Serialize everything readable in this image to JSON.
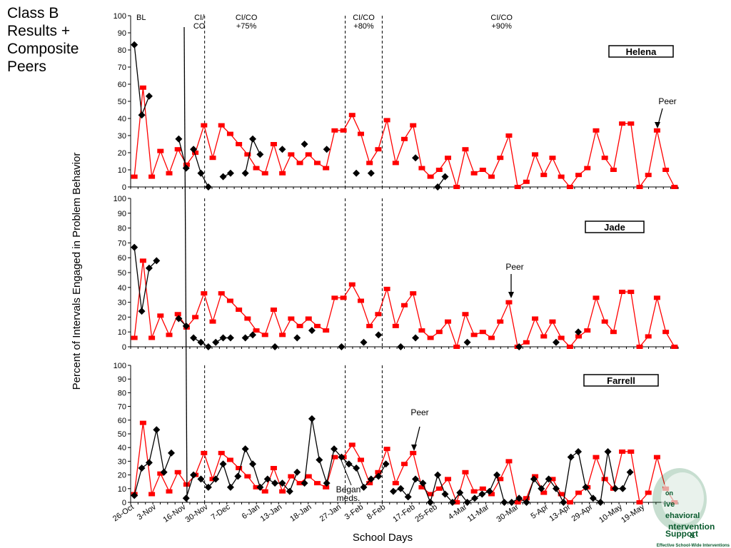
{
  "slide": {
    "title": "Class B\nResults +\nComposite\nPeers"
  },
  "colors": {
    "student": "#000000",
    "peer": "#ff0000",
    "logo_green": "#0a5b2e"
  },
  "chart_data": {
    "type": "line",
    "y_title": "Percent of Intervals Engaged in Problem Behavior",
    "x_title": "School Days",
    "ylim": [
      0,
      100
    ],
    "y_ticks": [
      0,
      10,
      20,
      30,
      40,
      50,
      60,
      70,
      80,
      90,
      100
    ],
    "n_days": 74,
    "x_tick_labels": [
      {
        "day": 1,
        "label": "26-Oct"
      },
      {
        "day": 4,
        "label": "3-Nov"
      },
      {
        "day": 8,
        "label": "16-Nov"
      },
      {
        "day": 11,
        "label": "30-Nov"
      },
      {
        "day": 14,
        "label": "7-Dec"
      },
      {
        "day": 18,
        "label": "6-Jan"
      },
      {
        "day": 21,
        "label": "13-Jan"
      },
      {
        "day": 25,
        "label": "18-Jan"
      },
      {
        "day": 29,
        "label": "27-Jan"
      },
      {
        "day": 32,
        "label": "3-Feb"
      },
      {
        "day": 35,
        "label": "8-Feb"
      },
      {
        "day": 39,
        "label": "17-Feb"
      },
      {
        "day": 42,
        "label": "25-Feb"
      },
      {
        "day": 46,
        "label": "4-Mar"
      },
      {
        "day": 49,
        "label": "11-Mar"
      },
      {
        "day": 53,
        "label": "30-Mar"
      },
      {
        "day": 57,
        "label": "5-Apr"
      },
      {
        "day": 60,
        "label": "13-Apr"
      },
      {
        "day": 63,
        "label": "29-Apr"
      },
      {
        "day": 67,
        "label": "10-May"
      },
      {
        "day": 70,
        "label": "19-May"
      }
    ],
    "phases": [
      {
        "label": "BL",
        "align": "left"
      },
      {
        "label": "CI/\nCO",
        "align": "center"
      },
      {
        "label": "CI/CO\n+75%",
        "align": "center"
      },
      {
        "label": "CI/CO\n+80%",
        "align": "center"
      },
      {
        "label": "CI/CO\n+90%",
        "align": "center"
      }
    ],
    "phase_change_after_days": [
      10.5,
      29.5,
      34.5
    ],
    "peer_series": {
      "name": "Peer",
      "values": [
        6,
        58,
        6,
        21,
        8,
        22,
        13,
        20,
        36,
        17,
        36,
        31,
        25,
        19,
        11,
        8,
        25,
        8,
        19,
        14,
        19,
        14,
        11,
        33,
        33,
        42,
        31,
        14,
        22,
        39,
        14,
        28,
        36,
        11,
        6,
        10,
        17,
        0,
        22,
        8,
        10,
        6,
        17,
        30,
        0,
        3,
        19,
        7,
        17,
        6,
        0,
        7,
        11,
        33,
        17,
        10,
        37,
        37,
        0,
        7,
        33,
        10,
        0
      ]
    },
    "panels": [
      {
        "student": "Helena",
        "peer_label": "Peer",
        "student_series": [
          {
            "days": [
              1,
              2,
              3,
              4
            ],
            "values": [
              83,
              42,
              53,
              null
            ]
          },
          {
            "days": [
              7,
              8
            ],
            "values": [
              28,
              11
            ]
          },
          {
            "days": [
              9,
              10,
              11
            ],
            "values": [
              22,
              8,
              0
            ]
          },
          {
            "days": [
              13,
              14
            ],
            "values": [
              6,
              8
            ]
          },
          {
            "days": [
              16,
              17,
              18
            ],
            "values": [
              8,
              28,
              19
            ]
          },
          {
            "days": [
              21
            ],
            "values": [
              22
            ]
          },
          {
            "days": [
              24
            ],
            "values": [
              25
            ]
          },
          {
            "days": [
              27
            ],
            "values": [
              22
            ]
          },
          {
            "days": [
              31
            ],
            "values": [
              8
            ]
          },
          {
            "days": [
              33
            ],
            "values": [
              8
            ]
          },
          {
            "days": [
              39
            ],
            "values": [
              17
            ]
          },
          {
            "days": [
              42,
              43
            ],
            "values": [
              0,
              6
            ]
          }
        ]
      },
      {
        "student": "Jade",
        "peer_label": "Peer",
        "student_series": [
          {
            "days": [
              1,
              2,
              3,
              4,
              5
            ],
            "values": [
              67,
              24,
              53,
              58,
              null
            ]
          },
          {
            "days": [
              7,
              8
            ],
            "values": [
              19,
              14
            ]
          },
          {
            "days": [
              9,
              10,
              11
            ],
            "values": [
              6,
              3,
              0
            ]
          },
          {
            "days": [
              12,
              13,
              14
            ],
            "values": [
              3,
              6,
              6
            ]
          },
          {
            "days": [
              16,
              17
            ],
            "values": [
              6,
              8
            ]
          },
          {
            "days": [
              20
            ],
            "values": [
              0
            ]
          },
          {
            "days": [
              23
            ],
            "values": [
              6
            ]
          },
          {
            "days": [
              25
            ],
            "values": [
              11
            ]
          },
          {
            "days": [
              29
            ],
            "values": [
              0
            ]
          },
          {
            "days": [
              32
            ],
            "values": [
              3
            ]
          },
          {
            "days": [
              34
            ],
            "values": [
              8
            ]
          },
          {
            "days": [
              37
            ],
            "values": [
              0
            ]
          },
          {
            "days": [
              39
            ],
            "values": [
              6
            ]
          },
          {
            "days": [
              46
            ],
            "values": [
              3
            ]
          },
          {
            "days": [
              53
            ],
            "values": [
              0
            ]
          },
          {
            "days": [
              58
            ],
            "values": [
              3
            ]
          },
          {
            "days": [
              61
            ],
            "values": [
              10
            ]
          }
        ]
      },
      {
        "student": "Farrell",
        "peer_label": "Peer",
        "annotation": "Began\nmeds.",
        "student_series": [
          {
            "days": [
              1,
              2,
              3,
              4,
              5,
              6,
              7
            ],
            "values": [
              5,
              25,
              29,
              53,
              22,
              36,
              null
            ]
          },
          {
            "days": [
              8,
              9
            ],
            "values": [
              3,
              20
            ]
          },
          {
            "days": [
              10,
              11,
              12,
              13,
              14,
              15,
              16,
              17,
              18,
              19,
              20,
              21,
              22,
              23
            ],
            "values": [
              17,
              11,
              17,
              28,
              11,
              19,
              39,
              28,
              11,
              17,
              14,
              14,
              8,
              22
            ]
          },
          {
            "days": [
              24,
              25,
              26,
              27,
              28,
              29,
              30,
              31,
              32,
              33,
              34,
              35
            ],
            "values": [
              14,
              61,
              31,
              14,
              39,
              33,
              28,
              25,
              11,
              17,
              19,
              28
            ]
          },
          {
            "days": [
              36,
              37,
              38,
              39,
              40,
              41,
              42,
              43,
              44,
              45,
              46,
              47,
              48,
              49,
              50,
              51,
              52,
              53,
              54,
              55,
              56,
              57,
              58,
              59,
              60,
              61,
              62,
              63,
              64,
              65,
              66,
              67,
              68,
              69,
              70,
              71,
              72,
              73,
              74
            ],
            "values": [
              8,
              10,
              4,
              17,
              14,
              0,
              20,
              6,
              0,
              7,
              0,
              3,
              6,
              8,
              20,
              0,
              0,
              3,
              0,
              17,
              10,
              17,
              10,
              0,
              33,
              37,
              11,
              3,
              0,
              37,
              10,
              10,
              22,
              null,
              null,
              null,
              null,
              null,
              null
            ]
          }
        ]
      }
    ]
  },
  "logo": {
    "fragments": [
      "on",
      "ive",
      "ehavioral",
      "ntervention",
      "&",
      "Support"
    ],
    "tagline": "Effective School-Wide Interventions"
  }
}
